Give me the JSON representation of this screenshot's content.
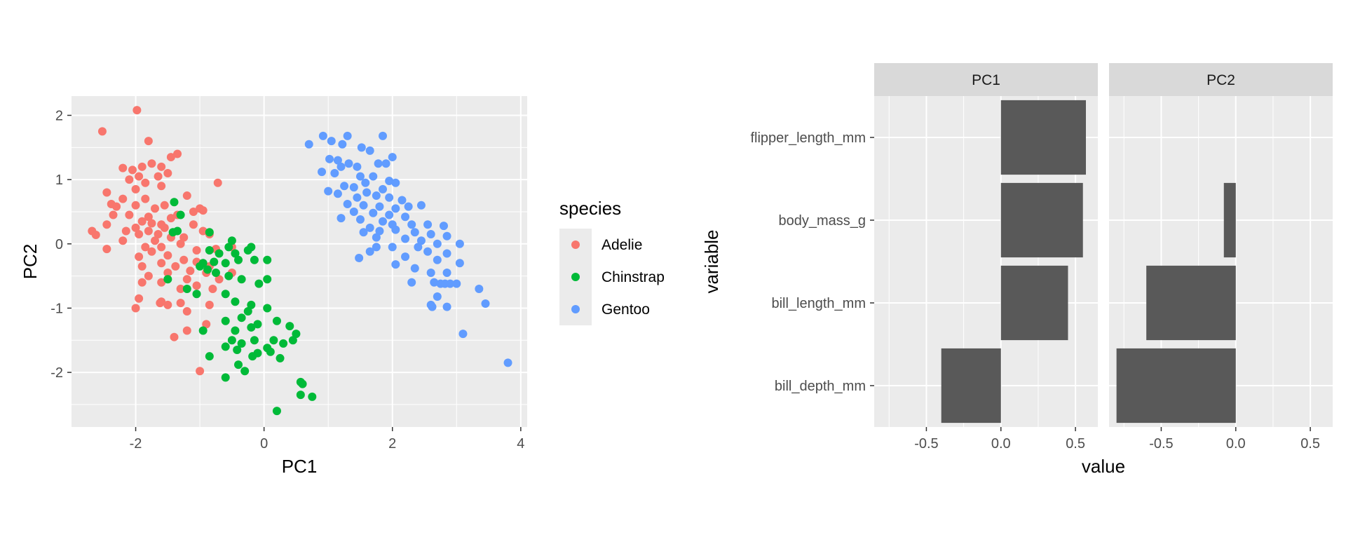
{
  "chart_data": [
    {
      "type": "scatter",
      "xlabel": "PC1",
      "ylabel": "PC2",
      "xlim": [
        -3.0,
        4.1
      ],
      "ylim": [
        -2.85,
        2.3
      ],
      "xticks": [
        -2,
        0,
        2,
        4
      ],
      "yticks": [
        -2,
        -1,
        0,
        1,
        2
      ],
      "grid": true,
      "legend": {
        "title": "species",
        "position": "right",
        "entries": [
          {
            "name": "Adelie",
            "color": "#F8766D"
          },
          {
            "name": "Chinstrap",
            "color": "#00BA38"
          },
          {
            "name": "Gentoo",
            "color": "#619CFF"
          }
        ]
      },
      "series": [
        {
          "name": "Adelie",
          "color": "#F8766D",
          "points": [
            [
              -1.98,
              2.08
            ],
            [
              -2.52,
              1.75
            ],
            [
              -1.8,
              1.6
            ],
            [
              -1.35,
              1.4
            ],
            [
              -1.45,
              1.35
            ],
            [
              -1.9,
              1.2
            ],
            [
              -2.2,
              1.18
            ],
            [
              -1.6,
              1.2
            ],
            [
              -1.75,
              1.25
            ],
            [
              -2.05,
              1.15
            ],
            [
              -1.5,
              1.1
            ],
            [
              -1.65,
              1.05
            ],
            [
              -1.95,
              1.05
            ],
            [
              -2.1,
              1.0
            ],
            [
              -1.85,
              0.95
            ],
            [
              -2.45,
              0.8
            ],
            [
              -1.6,
              0.9
            ],
            [
              -2.0,
              0.85
            ],
            [
              -2.2,
              0.7
            ],
            [
              -0.72,
              0.95
            ],
            [
              -1.2,
              0.75
            ],
            [
              -1.85,
              0.7
            ],
            [
              -2.38,
              0.62
            ],
            [
              -2.3,
              0.58
            ],
            [
              -1.55,
              0.6
            ],
            [
              -1.7,
              0.55
            ],
            [
              -2.0,
              0.6
            ],
            [
              -1.0,
              0.55
            ],
            [
              -1.1,
              0.5
            ],
            [
              -0.95,
              0.52
            ],
            [
              -2.1,
              0.45
            ],
            [
              -1.8,
              0.42
            ],
            [
              -1.35,
              0.45
            ],
            [
              -1.45,
              0.4
            ],
            [
              -2.35,
              0.45
            ],
            [
              -1.9,
              0.35
            ],
            [
              -1.6,
              0.3
            ],
            [
              -2.0,
              0.25
            ],
            [
              -1.75,
              0.32
            ],
            [
              -1.1,
              0.3
            ],
            [
              -2.45,
              0.3
            ],
            [
              -1.55,
              0.25
            ],
            [
              -1.8,
              0.2
            ],
            [
              -1.95,
              0.15
            ],
            [
              -2.15,
              0.2
            ],
            [
              -2.68,
              0.2
            ],
            [
              -2.62,
              0.14
            ],
            [
              -1.65,
              0.15
            ],
            [
              -1.45,
              0.1
            ],
            [
              -0.95,
              0.2
            ],
            [
              -0.85,
              0.15
            ],
            [
              -1.25,
              0.1
            ],
            [
              -1.7,
              0.05
            ],
            [
              -1.85,
              -0.05
            ],
            [
              -2.2,
              0.05
            ],
            [
              -1.3,
              0.0
            ],
            [
              -1.6,
              -0.05
            ],
            [
              -1.05,
              -0.1
            ],
            [
              -2.45,
              -0.08
            ],
            [
              -0.75,
              -0.08
            ],
            [
              -0.5,
              -0.05
            ],
            [
              -1.75,
              -0.12
            ],
            [
              -1.95,
              -0.2
            ],
            [
              -1.5,
              -0.18
            ],
            [
              -1.25,
              -0.25
            ],
            [
              -1.05,
              -0.28
            ],
            [
              -0.85,
              -0.35
            ],
            [
              -1.9,
              -0.35
            ],
            [
              -1.6,
              -0.3
            ],
            [
              -1.38,
              -0.35
            ],
            [
              -1.15,
              -0.42
            ],
            [
              -0.9,
              -0.45
            ],
            [
              -1.5,
              -0.45
            ],
            [
              -1.8,
              -0.5
            ],
            [
              -1.2,
              -0.55
            ],
            [
              -0.5,
              -0.45
            ],
            [
              -0.7,
              -0.55
            ],
            [
              -1.6,
              -0.6
            ],
            [
              -1.9,
              -0.6
            ],
            [
              -1.3,
              -0.7
            ],
            [
              -1.05,
              -0.65
            ],
            [
              -0.8,
              -0.7
            ],
            [
              -1.95,
              -0.85
            ],
            [
              -1.6,
              -0.9
            ],
            [
              -1.5,
              -0.95
            ],
            [
              -1.62,
              -0.92
            ],
            [
              -1.3,
              -0.92
            ],
            [
              -2.0,
              -1.0
            ],
            [
              -0.85,
              -0.95
            ],
            [
              -1.2,
              -1.05
            ],
            [
              -1.4,
              -1.45
            ],
            [
              -1.2,
              -1.35
            ],
            [
              -1.0,
              -1.98
            ],
            [
              -0.9,
              -1.25
            ]
          ]
        },
        {
          "name": "Chinstrap",
          "color": "#00BA38",
          "points": [
            [
              -1.4,
              0.65
            ],
            [
              -1.3,
              0.45
            ],
            [
              -1.35,
              0.2
            ],
            [
              -1.42,
              0.18
            ],
            [
              -0.85,
              0.18
            ],
            [
              -0.5,
              0.05
            ],
            [
              -0.55,
              -0.05
            ],
            [
              -0.2,
              -0.05
            ],
            [
              -0.25,
              -0.1
            ],
            [
              -0.45,
              -0.15
            ],
            [
              -0.85,
              -0.1
            ],
            [
              -0.7,
              -0.15
            ],
            [
              -0.95,
              -0.3
            ],
            [
              -0.78,
              -0.28
            ],
            [
              -0.6,
              -0.3
            ],
            [
              -0.4,
              -0.25
            ],
            [
              -0.15,
              -0.25
            ],
            [
              0.05,
              -0.25
            ],
            [
              -1.0,
              -0.35
            ],
            [
              -0.88,
              -0.4
            ],
            [
              -0.75,
              -0.45
            ],
            [
              -0.55,
              -0.5
            ],
            [
              -0.35,
              -0.55
            ],
            [
              -0.08,
              -0.62
            ],
            [
              0.05,
              -0.55
            ],
            [
              -1.5,
              -0.55
            ],
            [
              -1.2,
              -0.7
            ],
            [
              -1.05,
              -0.78
            ],
            [
              -0.6,
              -0.78
            ],
            [
              -0.45,
              -0.9
            ],
            [
              -0.2,
              -0.95
            ],
            [
              0.05,
              -1.0
            ],
            [
              -0.25,
              -1.05
            ],
            [
              -0.35,
              -1.15
            ],
            [
              -0.6,
              -1.2
            ],
            [
              -0.1,
              -1.25
            ],
            [
              0.2,
              -1.2
            ],
            [
              0.4,
              -1.28
            ],
            [
              0.5,
              -1.4
            ],
            [
              -0.45,
              -1.35
            ],
            [
              -0.2,
              -1.3
            ],
            [
              -0.95,
              -1.35
            ],
            [
              -0.5,
              -1.5
            ],
            [
              -0.35,
              -1.55
            ],
            [
              -0.15,
              -1.5
            ],
            [
              0.15,
              -1.5
            ],
            [
              0.3,
              -1.55
            ],
            [
              0.45,
              -1.5
            ],
            [
              -0.6,
              -1.6
            ],
            [
              -0.42,
              -1.65
            ],
            [
              0.05,
              -1.62
            ],
            [
              0.1,
              -1.68
            ],
            [
              -0.1,
              -1.7
            ],
            [
              -0.18,
              -1.75
            ],
            [
              -0.85,
              -1.75
            ],
            [
              0.25,
              -1.78
            ],
            [
              -0.4,
              -1.88
            ],
            [
              -0.3,
              -1.98
            ],
            [
              -0.6,
              -2.08
            ],
            [
              0.57,
              -2.15
            ],
            [
              0.6,
              -2.18
            ],
            [
              0.57,
              -2.35
            ],
            [
              0.75,
              -2.38
            ],
            [
              0.2,
              -2.6
            ]
          ]
        },
        {
          "name": "Gentoo",
          "color": "#619CFF",
          "points": [
            [
              0.92,
              1.68
            ],
            [
              1.05,
              1.6
            ],
            [
              1.3,
              1.68
            ],
            [
              1.85,
              1.68
            ],
            [
              0.7,
              1.55
            ],
            [
              1.22,
              1.55
            ],
            [
              1.52,
              1.5
            ],
            [
              1.65,
              1.45
            ],
            [
              2.0,
              1.35
            ],
            [
              1.02,
              1.32
            ],
            [
              1.15,
              1.3
            ],
            [
              1.32,
              1.25
            ],
            [
              1.45,
              1.2
            ],
            [
              1.78,
              1.25
            ],
            [
              1.9,
              1.25
            ],
            [
              1.2,
              1.2
            ],
            [
              0.9,
              1.12
            ],
            [
              1.1,
              1.1
            ],
            [
              1.5,
              1.05
            ],
            [
              1.7,
              1.05
            ],
            [
              1.95,
              0.98
            ],
            [
              2.05,
              0.95
            ],
            [
              1.58,
              0.95
            ],
            [
              1.25,
              0.9
            ],
            [
              1.4,
              0.88
            ],
            [
              1.85,
              0.85
            ],
            [
              1.0,
              0.82
            ],
            [
              1.15,
              0.78
            ],
            [
              1.6,
              0.8
            ],
            [
              1.75,
              0.75
            ],
            [
              1.45,
              0.72
            ],
            [
              1.95,
              0.72
            ],
            [
              2.15,
              0.68
            ],
            [
              1.3,
              0.62
            ],
            [
              1.55,
              0.6
            ],
            [
              1.8,
              0.58
            ],
            [
              2.05,
              0.55
            ],
            [
              2.25,
              0.58
            ],
            [
              2.45,
              0.6
            ],
            [
              1.4,
              0.5
            ],
            [
              1.7,
              0.48
            ],
            [
              1.95,
              0.45
            ],
            [
              2.2,
              0.42
            ],
            [
              1.2,
              0.4
            ],
            [
              1.5,
              0.38
            ],
            [
              1.85,
              0.35
            ],
            [
              2.0,
              0.3
            ],
            [
              2.3,
              0.3
            ],
            [
              2.55,
              0.3
            ],
            [
              2.8,
              0.28
            ],
            [
              1.65,
              0.25
            ],
            [
              1.8,
              0.2
            ],
            [
              2.05,
              0.22
            ],
            [
              1.55,
              0.18
            ],
            [
              2.35,
              0.18
            ],
            [
              2.6,
              0.15
            ],
            [
              2.85,
              0.12
            ],
            [
              1.75,
              0.1
            ],
            [
              2.2,
              0.08
            ],
            [
              2.45,
              0.05
            ],
            [
              2.7,
              0.0
            ],
            [
              3.05,
              0.0
            ],
            [
              1.75,
              -0.05
            ],
            [
              2.0,
              -0.05
            ],
            [
              2.4,
              -0.05
            ],
            [
              1.65,
              -0.12
            ],
            [
              2.55,
              -0.12
            ],
            [
              2.85,
              -0.15
            ],
            [
              2.2,
              -0.2
            ],
            [
              1.48,
              -0.22
            ],
            [
              2.7,
              -0.25
            ],
            [
              3.05,
              -0.3
            ],
            [
              2.05,
              -0.32
            ],
            [
              2.35,
              -0.38
            ],
            [
              2.6,
              -0.45
            ],
            [
              2.85,
              -0.45
            ],
            [
              2.3,
              -0.6
            ],
            [
              2.65,
              -0.6
            ],
            [
              2.75,
              -0.62
            ],
            [
              2.82,
              -0.62
            ],
            [
              2.9,
              -0.62
            ],
            [
              3.0,
              -0.62
            ],
            [
              3.35,
              -0.7
            ],
            [
              2.7,
              -0.82
            ],
            [
              3.45,
              -0.93
            ],
            [
              2.6,
              -0.95
            ],
            [
              2.62,
              -0.98
            ],
            [
              2.85,
              -0.98
            ],
            [
              3.1,
              -1.4
            ],
            [
              3.8,
              -1.85
            ]
          ]
        }
      ]
    },
    {
      "type": "bar",
      "orientation": "horizontal",
      "facets": [
        "PC1",
        "PC2"
      ],
      "categories": [
        "flipper_length_mm",
        "body_mass_g",
        "bill_length_mm",
        "bill_depth_mm"
      ],
      "series": [
        {
          "facet": "PC1",
          "values": [
            0.57,
            0.55,
            0.45,
            -0.4
          ]
        },
        {
          "facet": "PC2",
          "values": [
            0.0,
            -0.08,
            -0.6,
            -0.8
          ]
        }
      ],
      "xlabel": "value",
      "ylabel": "variable",
      "xlim": [
        -0.85,
        0.65
      ],
      "xticks": [
        -0.5,
        0.0,
        0.5
      ],
      "xtick_labels": [
        "-0.5",
        "0.0",
        "0.5"
      ],
      "bar_color": "#595959",
      "grid": true
    }
  ]
}
